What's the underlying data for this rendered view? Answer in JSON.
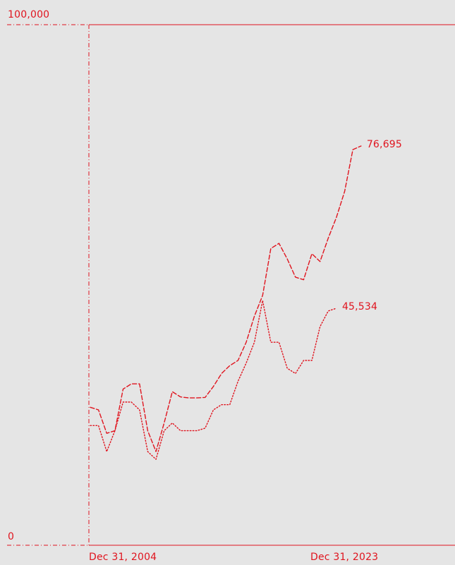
{
  "colors": {
    "accent": "#e0141e",
    "background": "#e5e5e5"
  },
  "chart_data": {
    "type": "line",
    "title": "",
    "xlabel": "",
    "ylabel": "",
    "ylim": [
      0,
      100000
    ],
    "y_ticks": [
      "100,000",
      "0"
    ],
    "x_ticks": [
      "Dec 31, 2004",
      "Dec 31, 2023"
    ],
    "x": [
      "2004-12",
      "2005-06",
      "2005-12",
      "2006-06",
      "2006-12",
      "2007-06",
      "2007-12",
      "2008-06",
      "2008-12",
      "2009-06",
      "2009-12",
      "2010-06",
      "2010-12",
      "2011-06",
      "2011-12",
      "2012-06",
      "2012-12",
      "2013-06",
      "2013-12",
      "2014-06",
      "2014-12",
      "2015-06",
      "2015-12",
      "2016-06",
      "2016-12",
      "2017-06",
      "2017-12",
      "2018-06",
      "2018-12",
      "2019-06",
      "2019-12",
      "2020-06",
      "2020-12",
      "2021-06",
      "2021-12",
      "2022-06",
      "2022-12",
      "2023-06",
      "2023-12"
    ],
    "series": [
      {
        "name": "",
        "style": "dashed",
        "end_label": "76,695",
        "values": [
          26500,
          26000,
          21500,
          22000,
          30000,
          31000,
          31000,
          22000,
          18000,
          23500,
          29500,
          28500,
          28300,
          28300,
          28400,
          30500,
          33000,
          34500,
          35500,
          39000,
          44000,
          48000,
          57000,
          58000,
          55000,
          51500,
          51000,
          56000,
          54500,
          59000,
          63000,
          68000,
          76000,
          76695,
          null,
          null,
          null,
          null,
          null
        ]
      },
      {
        "name": "",
        "style": "dotted",
        "end_label": "45,534",
        "values": [
          23000,
          23000,
          18000,
          22000,
          27500,
          27500,
          26000,
          18000,
          16500,
          22000,
          23500,
          22000,
          22000,
          22000,
          22500,
          26000,
          27000,
          27000,
          31500,
          35000,
          39000,
          47000,
          39000,
          39000,
          34000,
          33000,
          35500,
          35500,
          42000,
          45000,
          45534,
          null,
          null,
          null,
          null,
          null,
          null,
          null,
          null
        ]
      }
    ]
  }
}
